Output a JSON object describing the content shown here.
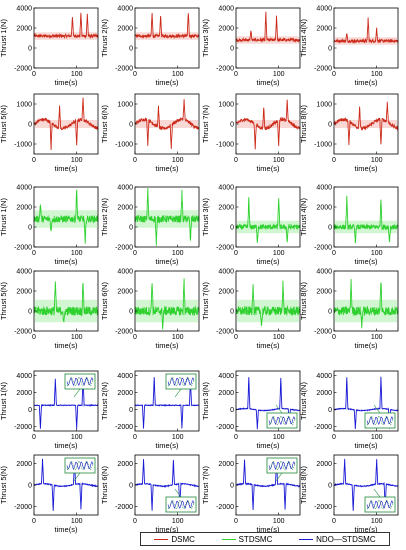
{
  "colors": {
    "dsmc": "#cc2a1a",
    "stdsmc": "#2fd12f",
    "ndo": "#1a1ad6",
    "fill_red": "#f6c9c4",
    "fill_green": "#bff2bf",
    "axis": "#000000"
  },
  "chart_data": {
    "type": "line",
    "layout": "6 rows x 4 columns of small line plots",
    "xlabel": "time(s)",
    "xlim": [
      0,
      150
    ],
    "xticks": [
      0,
      100
    ],
    "grid": false,
    "legend": {
      "placement": "bottom",
      "entries": [
        "DSMC",
        "STDSMC",
        "NDO—STDSMC"
      ]
    },
    "groups": [
      {
        "controller": "DSMC",
        "rows": [
          {
            "yticks": [
              4000,
              2000,
              0,
              -2000
            ],
            "ylim": [
              -2000,
              4000
            ],
            "panels": [
              {
                "ylabel": "Thrust 1(N)",
                "baseline": 1200,
                "noise": 150,
                "spikes": [
                  [
                    90,
                    3200
                  ],
                  [
                    110,
                    3600
                  ],
                  [
                    125,
                    3400
                  ]
                ]
              },
              {
                "ylabel": "Thrust 2(N)",
                "baseline": 1200,
                "noise": 150,
                "spikes": [
                  [
                    40,
                    3500
                  ],
                  [
                    60,
                    3300
                  ],
                  [
                    125,
                    3600
                  ]
                ]
              },
              {
                "ylabel": "Thrust 3(N)",
                "baseline": 800,
                "noise": 150,
                "spikes": [
                  [
                    35,
                    1800
                  ],
                  [
                    70,
                    3500
                  ],
                  [
                    95,
                    3200
                  ]
                ]
              },
              {
                "ylabel": "Thrust 4(N)",
                "baseline": 700,
                "noise": 150,
                "spikes": [
                  [
                    30,
                    1400
                  ],
                  [
                    80,
                    3000
                  ],
                  [
                    100,
                    2000
                  ]
                ]
              }
            ]
          },
          {
            "yticks": [
              1000,
              0,
              -1000
            ],
            "ylim": [
              -1500,
              1500
            ],
            "panels": [
              {
                "ylabel": "Thrust 5(N)",
                "baseline": 0,
                "noise": 80,
                "spikes": [
                  [
                    40,
                    -1300
                  ],
                  [
                    60,
                    1100
                  ],
                  [
                    100,
                    -1300
                  ],
                  [
                    115,
                    1100
                  ]
                ]
              },
              {
                "ylabel": "Thrust 6(N)",
                "baseline": 0,
                "noise": 80,
                "spikes": [
                  [
                    30,
                    -1200
                  ],
                  [
                    55,
                    1000
                  ],
                  [
                    85,
                    -1200
                  ],
                  [
                    115,
                    1000
                  ]
                ]
              },
              {
                "ylabel": "Thrust 7(N)",
                "baseline": 0,
                "noise": 80,
                "spikes": [
                  [
                    45,
                    -1200
                  ],
                  [
                    65,
                    1100
                  ],
                  [
                    100,
                    -1300
                  ],
                  [
                    120,
                    1000
                  ]
                ]
              },
              {
                "ylabel": "Thrust 8(N)",
                "baseline": 0,
                "noise": 80,
                "spikes": [
                  [
                    35,
                    -1200
                  ],
                  [
                    60,
                    1100
                  ],
                  [
                    110,
                    -1300
                  ],
                  [
                    125,
                    1000
                  ]
                ]
              }
            ]
          }
        ]
      },
      {
        "controller": "STDSMC",
        "rows": [
          {
            "yticks": [
              4000,
              2000,
              0,
              -2000
            ],
            "ylim": [
              -2000,
              4000
            ],
            "panels": [
              {
                "ylabel": "Thrust 1(N)",
                "baseline": 800,
                "noise": 350,
                "spikes": [
                  [
                    15,
                    2400
                  ],
                  [
                    40,
                    -600
                  ],
                  [
                    100,
                    3800
                  ],
                  [
                    120,
                    -1800
                  ]
                ]
              },
              {
                "ylabel": "Thrust 2(N)",
                "baseline": 800,
                "noise": 350,
                "spikes": [
                  [
                    30,
                    3800
                  ],
                  [
                    50,
                    -1800
                  ],
                  [
                    110,
                    3500
                  ],
                  [
                    130,
                    -1500
                  ]
                ]
              },
              {
                "ylabel": "Thrust 3(N)",
                "baseline": 0,
                "noise": 250,
                "spikes": [
                  [
                    30,
                    2800
                  ],
                  [
                    50,
                    -1500
                  ],
                  [
                    100,
                    3000
                  ],
                  [
                    120,
                    -1500
                  ]
                ]
              },
              {
                "ylabel": "Thrust 4(N)",
                "baseline": 0,
                "noise": 250,
                "spikes": [
                  [
                    30,
                    2900
                  ],
                  [
                    50,
                    -1500
                  ],
                  [
                    110,
                    2900
                  ],
                  [
                    130,
                    -1500
                  ]
                ]
              }
            ]
          },
          {
            "yticks": [
              4000,
              2000,
              0,
              -2000
            ],
            "ylim": [
              -2000,
              4000
            ],
            "panels": [
              {
                "ylabel": "Thrust 5(N)",
                "baseline": 0,
                "noise": 450,
                "spikes": [
                  [
                    50,
                    3000
                  ],
                  [
                    70,
                    -1500
                  ],
                  [
                    115,
                    3000
                  ]
                ]
              },
              {
                "ylabel": "Thrust 6(N)",
                "baseline": 0,
                "noise": 450,
                "spikes": [
                  [
                    40,
                    3200
                  ],
                  [
                    65,
                    -1500
                  ],
                  [
                    115,
                    3100
                  ]
                ]
              },
              {
                "ylabel": "Thrust 7(N)",
                "baseline": 0,
                "noise": 450,
                "spikes": [
                  [
                    40,
                    3000
                  ],
                  [
                    60,
                    -1500
                  ],
                  [
                    110,
                    3000
                  ]
                ]
              },
              {
                "ylabel": "Thrust 8(N)",
                "baseline": 0,
                "noise": 450,
                "spikes": [
                  [
                    40,
                    3100
                  ],
                  [
                    65,
                    -1500
                  ],
                  [
                    110,
                    3200
                  ]
                ]
              }
            ]
          }
        ]
      },
      {
        "controller": "NDO—STDSMC",
        "rows": [
          {
            "yticks": [
              4000,
              2000,
              0,
              -2000
            ],
            "ylim": [
              -2500,
              4500
            ],
            "panels": [
              {
                "ylabel": "Thrust 1(N)",
                "baseline": 500,
                "noise": 40,
                "spikes": [
                  [
                    15,
                    -2200
                  ],
                  [
                    50,
                    3600
                  ],
                  [
                    100,
                    -2200
                  ],
                  [
                    115,
                    3600
                  ]
                ],
                "inset": "top"
              },
              {
                "ylabel": "Thrust 2(N)",
                "baseline": 500,
                "noise": 40,
                "spikes": [
                  [
                    20,
                    -2200
                  ],
                  [
                    45,
                    3800
                  ],
                  [
                    110,
                    -2200
                  ],
                  [
                    130,
                    3500
                  ]
                ],
                "inset": "top"
              },
              {
                "ylabel": "Thrust 3(N)",
                "baseline": 0,
                "noise": 40,
                "spikes": [
                  [
                    30,
                    3700
                  ],
                  [
                    50,
                    -2200
                  ],
                  [
                    105,
                    3600
                  ],
                  [
                    125,
                    -2200
                  ]
                ],
                "inset": "bottom"
              },
              {
                "ylabel": "Thrust 4(N)",
                "baseline": 0,
                "noise": 40,
                "spikes": [
                  [
                    30,
                    3700
                  ],
                  [
                    50,
                    -2200
                  ],
                  [
                    110,
                    3700
                  ],
                  [
                    130,
                    -2200
                  ]
                ],
                "inset": "bottom"
              }
            ]
          },
          {
            "yticks": [
              2000,
              0,
              -2000
            ],
            "ylim": [
              -2800,
              2800
            ],
            "panels": [
              {
                "ylabel": "Thrust 5(N)",
                "baseline": 0,
                "noise": 40,
                "spikes": [
                  [
                    20,
                    2300
                  ],
                  [
                    45,
                    -2400
                  ],
                  [
                    95,
                    2300
                  ],
                  [
                    110,
                    -2400
                  ]
                ],
                "inset": "top"
              },
              {
                "ylabel": "Thrust 6(N)",
                "baseline": 0,
                "noise": 40,
                "spikes": [
                  [
                    20,
                    2300
                  ],
                  [
                    40,
                    -2400
                  ],
                  [
                    90,
                    2300
                  ],
                  [
                    105,
                    -2400
                  ]
                ],
                "inset": "bottom"
              },
              {
                "ylabel": "Thrust 7(N)",
                "baseline": 0,
                "noise": 40,
                "spikes": [
                  [
                    20,
                    2300
                  ],
                  [
                    40,
                    -2400
                  ],
                  [
                    95,
                    2300
                  ],
                  [
                    115,
                    -2400
                  ]
                ],
                "inset": "top"
              },
              {
                "ylabel": "Thrust 8(N)",
                "baseline": 0,
                "noise": 40,
                "spikes": [
                  [
                    25,
                    2300
                  ],
                  [
                    45,
                    -2400
                  ],
                  [
                    100,
                    2300
                  ],
                  [
                    120,
                    -2400
                  ]
                ],
                "inset": "bottom"
              }
            ]
          }
        ]
      }
    ]
  }
}
